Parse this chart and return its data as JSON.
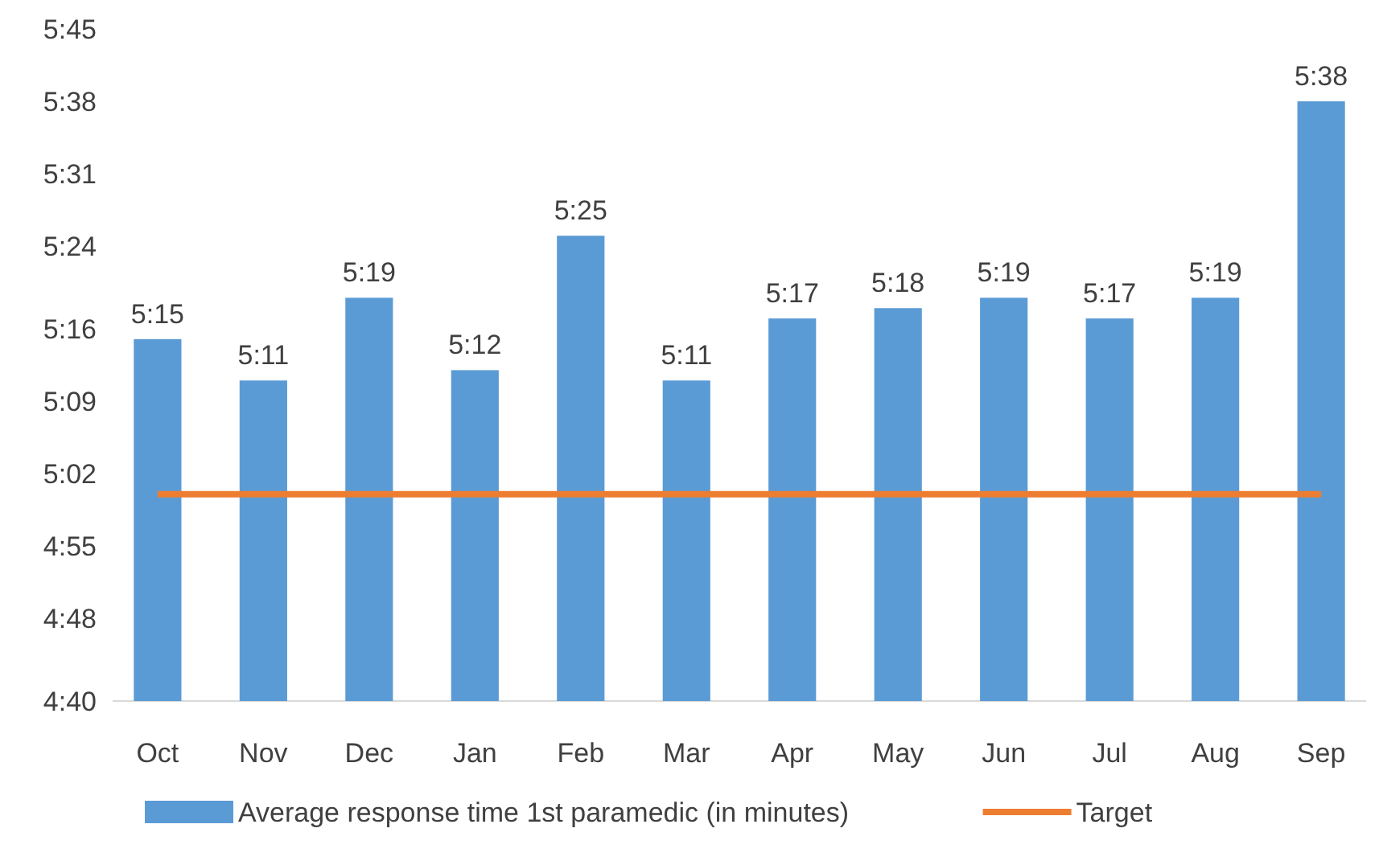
{
  "chart_data": {
    "type": "bar",
    "categories": [
      "Oct",
      "Nov",
      "Dec",
      "Jan",
      "Feb",
      "Mar",
      "Apr",
      "May",
      "Jun",
      "Jul",
      "Aug",
      "Sep"
    ],
    "series": [
      {
        "name": "Average response time 1st paramedic (in minutes)",
        "color": "#5b9bd5",
        "values": [
          315,
          311,
          319,
          312,
          325,
          311,
          317,
          318,
          319,
          317,
          319,
          338
        ],
        "value_labels": [
          "5:15",
          "5:11",
          "5:19",
          "5:12",
          "5:25",
          "5:11",
          "5:17",
          "5:18",
          "5:19",
          "5:17",
          "5:19",
          "5:38"
        ]
      },
      {
        "name": "Target",
        "type": "line",
        "color": "#ed7d31",
        "values": [
          300,
          300,
          300,
          300,
          300,
          300,
          300,
          300,
          300,
          300,
          300,
          300
        ]
      }
    ],
    "ylim": [
      280,
      345
    ],
    "yticks": [
      {
        "value": 280,
        "label": "4:40"
      },
      {
        "value": 288,
        "label": "4:48"
      },
      {
        "value": 295,
        "label": "4:55"
      },
      {
        "value": 302,
        "label": "5:02"
      },
      {
        "value": 309,
        "label": "5:09"
      },
      {
        "value": 316,
        "label": "5:16"
      },
      {
        "value": 324,
        "label": "5:24"
      },
      {
        "value": 331,
        "label": "5:31"
      },
      {
        "value": 338,
        "label": "5:38"
      },
      {
        "value": 345,
        "label": "5:45"
      }
    ],
    "grid": false,
    "legend": "bottom",
    "marker": "none",
    "line_style": "solid"
  }
}
